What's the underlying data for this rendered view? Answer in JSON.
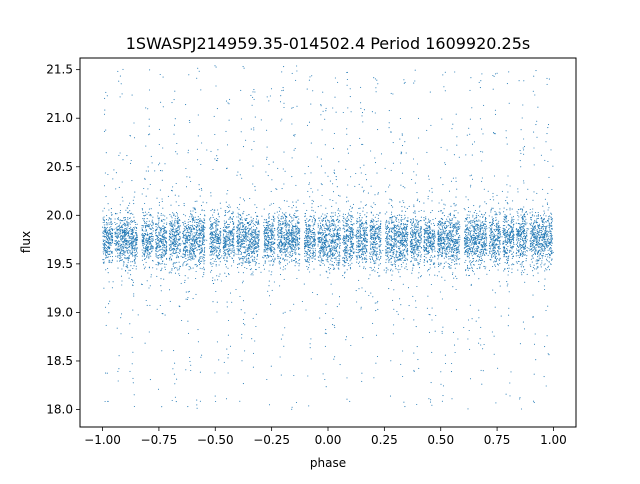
{
  "chart_data": {
    "type": "scatter",
    "title": "1SWASPJ214959.35-014502.4 Period 1609920.25s",
    "xlabel": "phase",
    "ylabel": "flux",
    "xlim": [
      -1.1,
      1.1
    ],
    "ylim": [
      17.82,
      21.62
    ],
    "x_ticks": [
      -1.0,
      -0.75,
      -0.5,
      -0.25,
      0.0,
      0.25,
      0.5,
      0.75,
      1.0
    ],
    "x_tick_labels": [
      "−1.00",
      "−0.75",
      "−0.50",
      "−0.25",
      "0.00",
      "0.25",
      "0.50",
      "0.75",
      "1.00"
    ],
    "y_ticks": [
      18.0,
      18.5,
      19.0,
      19.5,
      20.0,
      20.5,
      21.0,
      21.5
    ],
    "y_tick_labels": [
      "18.0",
      "18.5",
      "19.0",
      "19.5",
      "20.0",
      "20.5",
      "21.0",
      "21.5"
    ],
    "marker_color": "#1f77b4",
    "grid": false,
    "description_of_points": {
      "phase_range": [
        -1.0,
        1.0
      ],
      "flux_core_range": [
        19.4,
        20.05
      ],
      "flux_median": 19.75,
      "flux_outlier_range": [
        18.0,
        21.55
      ]
    },
    "observing_night_phases": [
      -0.98,
      -0.92,
      -0.87,
      -0.8,
      -0.74,
      -0.68,
      -0.62,
      -0.57,
      -0.5,
      -0.44,
      -0.38,
      -0.33,
      -0.26,
      -0.2,
      -0.15,
      -0.08,
      -0.02,
      0.03,
      0.09,
      0.15,
      0.21,
      0.28,
      0.33,
      0.39,
      0.45,
      0.51,
      0.56,
      0.63,
      0.68,
      0.74,
      0.8,
      0.86,
      0.92,
      0.97
    ]
  }
}
